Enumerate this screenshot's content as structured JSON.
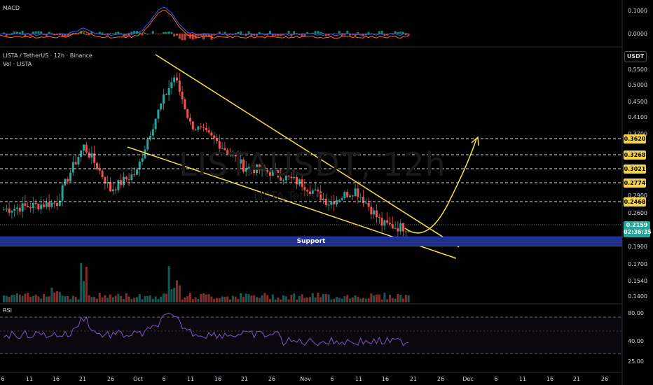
{
  "header": {
    "symbol_line": "LISTA / TetherUS · 12h · Binance",
    "vol_line": "Vol · LISTA",
    "unit": "USDT",
    "watermark": "LISTAUSDT, 12h",
    "watermark_sub": "LISTA Tether"
  },
  "macd": {
    "title": "MACD",
    "ticks": [
      "0.1000",
      "0.0000"
    ]
  },
  "rsi": {
    "title": "RSI",
    "ticks": [
      "80.00",
      "40.00",
      "25.00"
    ]
  },
  "price_axis": {
    "ticks": [
      "0.5500",
      "0.5000",
      "0.4500",
      "0.4100",
      "0.3700",
      "0.2900",
      "0.2600",
      "0.2300",
      "0.1900",
      "0.1700",
      "0.1540",
      "0.1400"
    ],
    "current_price": "0.2159",
    "countdown": "02:36:35"
  },
  "levels": [
    "0.3620",
    "0.3268",
    "0.3021",
    "0.2774",
    "0.2468"
  ],
  "support_label": "Support",
  "time_axis": [
    "6",
    "11",
    "16",
    "21",
    "26",
    "Oct",
    "6",
    "11",
    "16",
    "21",
    "26",
    "Nov",
    "6",
    "11",
    "16",
    "21",
    "26",
    "Dec",
    "6",
    "11",
    "16",
    "21",
    "26"
  ],
  "colors": {
    "up": "#26a69a",
    "down": "#ef5350",
    "trend": "#f7e14a",
    "support": "#1f2f8a",
    "rsi": "#7e57c2"
  },
  "chart_data": {
    "type": "candlestick",
    "symbol": "LISTAUSDT",
    "interval": "12h",
    "approx_close_path": [
      {
        "x": "Sep 6",
        "y": 0.24
      },
      {
        "x": "Sep 16",
        "y": 0.25
      },
      {
        "x": "Sep 21",
        "y": 0.35
      },
      {
        "x": "Sep 26",
        "y": 0.27
      },
      {
        "x": "Oct 1",
        "y": 0.3
      },
      {
        "x": "Oct 8",
        "y": 0.53
      },
      {
        "x": "Oct 11",
        "y": 0.4
      },
      {
        "x": "Oct 16",
        "y": 0.36
      },
      {
        "x": "Oct 21",
        "y": 0.31
      },
      {
        "x": "Oct 26",
        "y": 0.3
      },
      {
        "x": "Nov 1",
        "y": 0.28
      },
      {
        "x": "Nov 6",
        "y": 0.25
      },
      {
        "x": "Nov 11",
        "y": 0.27
      },
      {
        "x": "Nov 16",
        "y": 0.22
      },
      {
        "x": "Nov 19",
        "y": 0.2159
      }
    ],
    "levels": [
      0.362,
      0.3268,
      0.3021,
      0.2774,
      0.2468
    ],
    "support_zone": [
      0.19,
      0.2
    ],
    "current_price": 0.2159
  }
}
